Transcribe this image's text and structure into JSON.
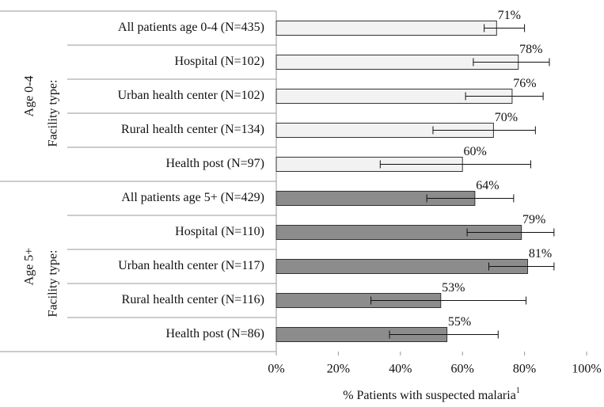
{
  "chart_data": {
    "type": "bar",
    "orientation": "horizontal",
    "xlabel": "% Patients with suspected malaria",
    "xlabel_note": "1",
    "xlim": [
      0,
      100
    ],
    "xticks": [
      {
        "value": 0,
        "label": "0%"
      },
      {
        "value": 20,
        "label": "20%"
      },
      {
        "value": 40,
        "label": "40%"
      },
      {
        "value": 60,
        "label": "60%"
      },
      {
        "value": 80,
        "label": "80%"
      },
      {
        "value": 100,
        "label": "100%"
      }
    ],
    "groups": [
      {
        "label": "Age 0-4",
        "sublabel": "Facility type:",
        "color": "#f2f2f2",
        "categories": [
          "All patients age 0-4 (N=435)",
          "Hospital (N=102)",
          "Urban health center (N=102)",
          "Rural health center (N=134)",
          "Health post (N=97)"
        ],
        "values": [
          71,
          78,
          76,
          70,
          60
        ],
        "value_labels": [
          "71%",
          "78%",
          "76%",
          "70%",
          "60%"
        ],
        "ci_low": [
          67,
          63.5,
          61,
          50.5,
          33.5
        ],
        "ci_high": [
          80,
          88,
          86,
          83.5,
          82
        ]
      },
      {
        "label": "Age 5+",
        "sublabel": "Facility type:",
        "color": "#8c8c8c",
        "categories": [
          "All patients age 5+ (N=429)",
          "Hospital (N=110)",
          "Urban health center (N=117)",
          "Rural health center (N=116)",
          "Health post (N=86)"
        ],
        "values": [
          64,
          79,
          81,
          53,
          55
        ],
        "value_labels": [
          "64%",
          "79%",
          "81%",
          "53%",
          "55%"
        ],
        "ci_low": [
          48.5,
          61.5,
          68.5,
          30.5,
          36.5
        ],
        "ci_high": [
          76.5,
          89.5,
          89.5,
          80.5,
          71.5
        ]
      }
    ]
  }
}
